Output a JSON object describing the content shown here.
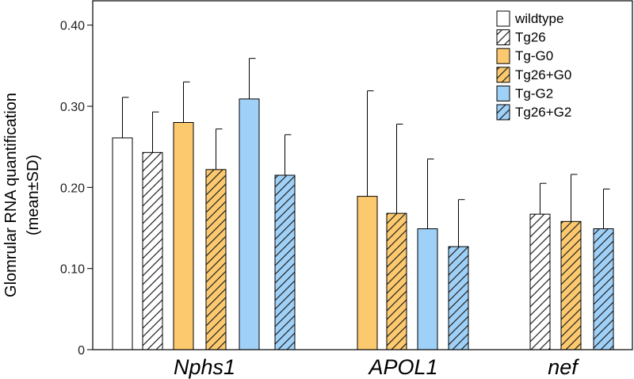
{
  "chart_data": {
    "type": "bar",
    "ylabel_line1": "Glomrular RNA quantification",
    "ylabel_line2": "(mean±SD)",
    "ylim": [
      0,
      0.43
    ],
    "yticks": [
      {
        "value": 0,
        "label": "0"
      },
      {
        "value": 0.1,
        "label": "0.10"
      },
      {
        "value": 0.2,
        "label": "0.20"
      },
      {
        "value": 0.3,
        "label": "0.30"
      },
      {
        "value": 0.4,
        "label": "0.40"
      }
    ],
    "grid": false,
    "legend_position": "top-right",
    "series": [
      {
        "name": "wildtype",
        "color": "#ffffff",
        "hatched": false
      },
      {
        "name": "Tg26",
        "color": "#ffffff",
        "hatched": true
      },
      {
        "name": "Tg-G0",
        "color": "#fcc96e",
        "hatched": false
      },
      {
        "name": "Tg26+G0",
        "color": "#fcc96e",
        "hatched": true
      },
      {
        "name": "Tg-G2",
        "color": "#9fd0f7",
        "hatched": false
      },
      {
        "name": "Tg26+G2",
        "color": "#9fd0f7",
        "hatched": true
      }
    ],
    "groups": [
      {
        "label": "Nphs1",
        "bars": [
          {
            "series": "wildtype",
            "value": 0.261,
            "sd": 0.05
          },
          {
            "series": "Tg26",
            "value": 0.243,
            "sd": 0.05
          },
          {
            "series": "Tg-G0",
            "value": 0.28,
            "sd": 0.05
          },
          {
            "series": "Tg26+G0",
            "value": 0.222,
            "sd": 0.05
          },
          {
            "series": "Tg-G2",
            "value": 0.309,
            "sd": 0.05
          },
          {
            "series": "Tg26+G2",
            "value": 0.215,
            "sd": 0.05
          }
        ]
      },
      {
        "label": "APOL1",
        "bars": [
          {
            "series": "Tg-G0",
            "value": 0.189,
            "sd": 0.13
          },
          {
            "series": "Tg26+G0",
            "value": 0.168,
            "sd": 0.11
          },
          {
            "series": "Tg-G2",
            "value": 0.149,
            "sd": 0.086
          },
          {
            "series": "Tg26+G2",
            "value": 0.127,
            "sd": 0.058
          }
        ]
      },
      {
        "label": "nef",
        "bars": [
          {
            "series": "Tg26",
            "value": 0.167,
            "sd": 0.038
          },
          {
            "series": "Tg26+G0",
            "value": 0.158,
            "sd": 0.058
          },
          {
            "series": "Tg26+G2",
            "value": 0.149,
            "sd": 0.049
          }
        ]
      }
    ]
  }
}
